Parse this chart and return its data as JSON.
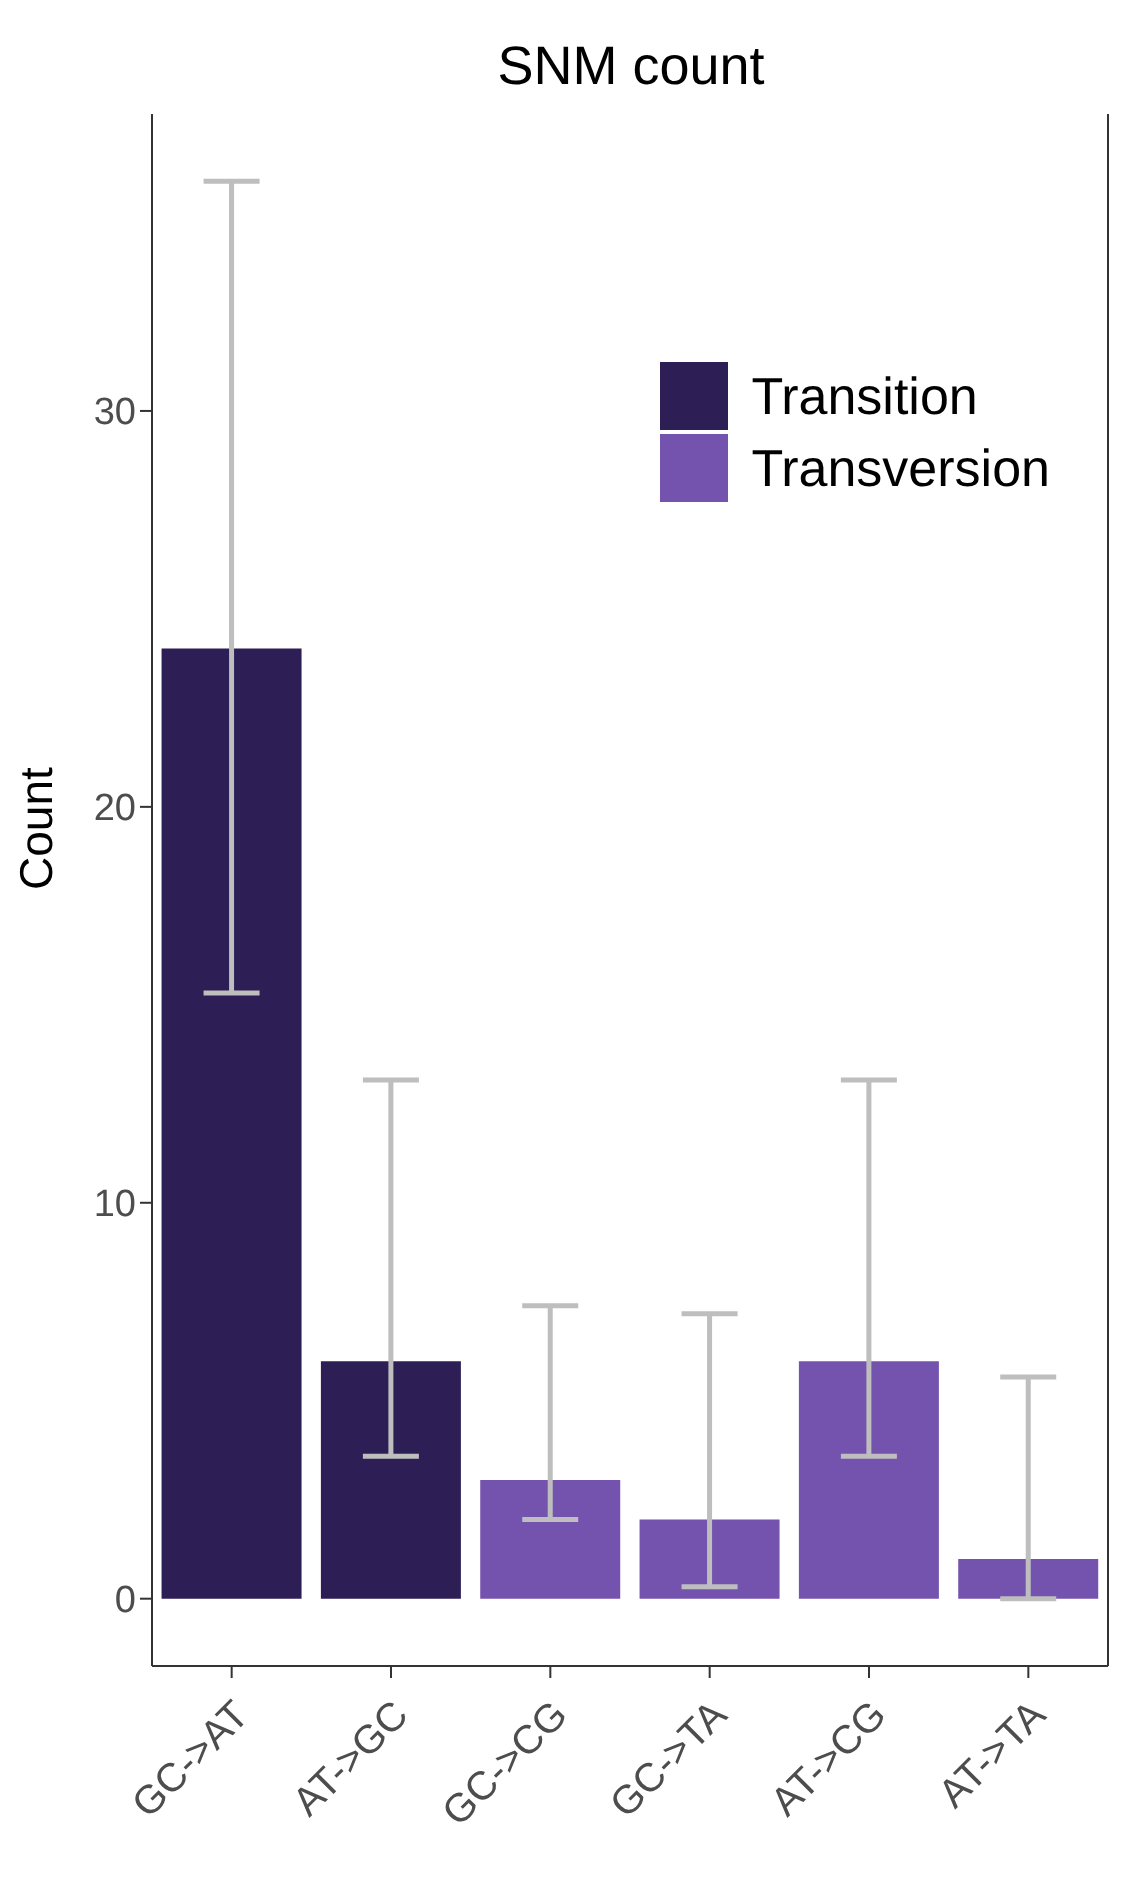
{
  "chart_data": {
    "type": "bar",
    "title": "SNM count",
    "ylabel": "Count",
    "categories": [
      "GC->AT",
      "AT->GC",
      "GC->CG",
      "GC->TA",
      "AT->CG",
      "AT->TA"
    ],
    "stacked": true,
    "series": [
      {
        "name": "Transition",
        "color": "#2d1f55",
        "values": [
          24,
          6,
          null,
          null,
          null,
          null
        ],
        "errors": [
          [
            15.3,
            35.8
          ],
          [
            3.6,
            13.1
          ],
          null,
          null,
          null,
          null
        ]
      },
      {
        "name": "Transversion",
        "color": "#7453ae",
        "values": [
          null,
          null,
          3,
          2,
          6,
          1
        ],
        "errors": [
          null,
          null,
          [
            2.0,
            7.4
          ],
          [
            0.3,
            7.2
          ],
          [
            3.6,
            13.1
          ],
          [
            0.0,
            5.6
          ]
        ]
      }
    ],
    "ylim": [
      -1.7,
      37.5
    ],
    "yticks": [
      0,
      10,
      20,
      30
    ],
    "grid": false,
    "legend": "top right"
  }
}
